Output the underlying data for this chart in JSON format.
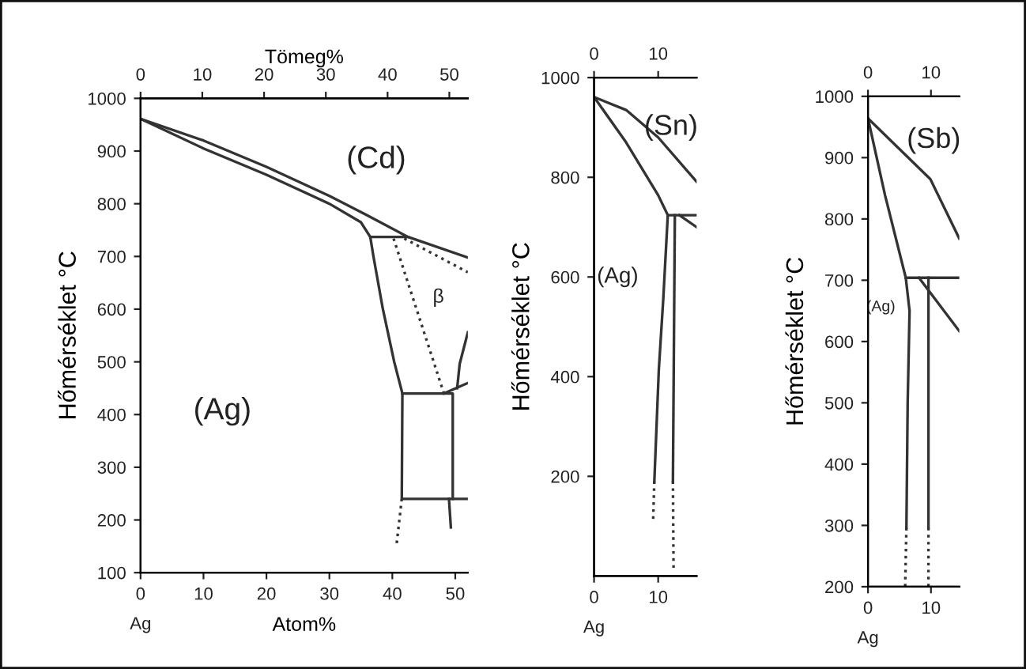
{
  "chart_data": [
    {
      "type": "line",
      "xlabel": "Atom%",
      "ylabel": "Hőmérséklet °C",
      "x2label": "Tömeg%",
      "xlim": [
        0,
        52
      ],
      "xticks": [
        0,
        10,
        20,
        30,
        40,
        50
      ],
      "x2lim": [
        0,
        53
      ],
      "x2ticks": [
        0,
        10,
        20,
        30,
        40,
        50
      ],
      "ylim": [
        100,
        1000
      ],
      "yticks": [
        100,
        200,
        300,
        400,
        500,
        600,
        700,
        800,
        900,
        1000
      ],
      "grid": false,
      "legend": false,
      "marker": "none",
      "series": [
        {
          "color": "#333333",
          "line_style": "solid",
          "x": [
            0,
            10,
            20,
            30,
            36,
            42.5,
            52
          ],
          "values": [
            961,
            920,
            870,
            815,
            778,
            737,
            698
          ]
        },
        {
          "color": "#333333",
          "line_style": "solid",
          "x": [
            0,
            10,
            20,
            30,
            35,
            36.5,
            37,
            38.5,
            40.3,
            41.6,
            41.5,
            52
          ],
          "values": [
            961,
            905,
            855,
            800,
            765,
            737,
            700,
            600,
            500,
            440,
            240,
            240
          ]
        },
        {
          "color": "#333333",
          "line_style": "solid",
          "x": [
            36.5,
            42.5
          ],
          "values": [
            737,
            737
          ]
        },
        {
          "color": "#333333",
          "line_style": "dotted",
          "x": [
            41.5,
            40.7
          ],
          "values": [
            240,
            156
          ]
        },
        {
          "color": "#333333",
          "line_style": "dotted",
          "x": [
            40.2,
            48.2
          ],
          "values": [
            734,
            440
          ]
        },
        {
          "color": "#333333",
          "line_style": "dotted",
          "x": [
            41.9,
            52
          ],
          "values": [
            734,
            670
          ]
        },
        {
          "color": "#333333",
          "line_style": "solid",
          "x": [
            41.6,
            49.6,
            49.6
          ],
          "values": [
            440,
            440,
            240
          ]
        },
        {
          "color": "#333333",
          "line_style": "solid",
          "x": [
            52,
            50.7,
            50.3
          ],
          "values": [
            556,
            496,
            450
          ]
        },
        {
          "color": "#333333",
          "line_style": "solid",
          "x": [
            48.2,
            52
          ],
          "values": [
            440,
            460
          ]
        },
        {
          "color": "#333333",
          "line_style": "solid",
          "x": [
            49,
            49.3
          ],
          "values": [
            240,
            186
          ]
        }
      ],
      "annotations": [
        "(Cd)",
        "β",
        "(Ag)",
        "Ag"
      ]
    },
    {
      "type": "line",
      "ylabel": "Hőmérséklet °C",
      "xlim": [
        0,
        16
      ],
      "xticks": [
        0,
        10
      ],
      "x2lim": [
        0,
        16
      ],
      "x2ticks": [
        0,
        10
      ],
      "ylim": [
        0,
        1000
      ],
      "yticks": [
        200,
        400,
        600,
        800,
        1000
      ],
      "grid": false,
      "legend": false,
      "marker": "none",
      "series": [
        {
          "color": "#333333",
          "line_style": "solid",
          "x": [
            0,
            5,
            10,
            16
          ],
          "values": [
            961,
            935,
            880,
            791
          ]
        },
        {
          "color": "#333333",
          "line_style": "solid",
          "x": [
            0,
            5,
            10,
            11.5,
            10.8,
            10.1,
            9.4
          ],
          "values": [
            961,
            870,
            764,
            724,
            557,
            414,
            190
          ]
        },
        {
          "color": "#333333",
          "line_style": "solid",
          "x": [
            11.5,
            16
          ],
          "values": [
            724,
            724
          ]
        },
        {
          "color": "#333333",
          "line_style": "solid",
          "x": [
            13.3,
            16
          ],
          "values": [
            724,
            700
          ]
        },
        {
          "color": "#333333",
          "line_style": "dotted",
          "x": [
            9.4,
            9.2
          ],
          "values": [
            190,
            106
          ]
        },
        {
          "color": "#333333",
          "line_style": "solid",
          "x": [
            12.6,
            12.3
          ],
          "values": [
            724,
            190
          ]
        },
        {
          "color": "#333333",
          "line_style": "dotted",
          "x": [
            12.3,
            12.4
          ],
          "values": [
            190,
            10
          ]
        }
      ],
      "annotations": [
        "(Sn)",
        "(Ag)",
        "Ag"
      ]
    },
    {
      "type": "line",
      "ylabel": "Hőmérséklet °C",
      "xlim": [
        0,
        14.5
      ],
      "xticks": [
        0,
        10
      ],
      "x2lim": [
        0,
        14.5
      ],
      "x2ticks": [
        0,
        10
      ],
      "ylim": [
        200,
        1000
      ],
      "yticks": [
        200,
        300,
        400,
        500,
        600,
        700,
        800,
        900,
        1000
      ],
      "grid": false,
      "legend": false,
      "marker": "none",
      "series": [
        {
          "color": "#333333",
          "line_style": "solid",
          "x": [
            0,
            9.9,
            14.5
          ],
          "values": [
            964,
            865,
            768
          ]
        },
        {
          "color": "#333333",
          "line_style": "solid",
          "x": [
            0,
            2.7,
            6,
            6.6,
            6.3,
            6.1
          ],
          "values": [
            964,
            839,
            704,
            650,
            500,
            296
          ]
        },
        {
          "color": "#333333",
          "line_style": "solid",
          "x": [
            6,
            14.5
          ],
          "values": [
            704,
            704
          ]
        },
        {
          "color": "#333333",
          "line_style": "solid",
          "x": [
            8.1,
            14.5
          ],
          "values": [
            704,
            617
          ]
        },
        {
          "color": "#333333",
          "line_style": "dotted",
          "x": [
            6.1,
            5.9
          ],
          "values": [
            296,
            200
          ]
        },
        {
          "color": "#333333",
          "line_style": "solid",
          "x": [
            9.6,
            9.6
          ],
          "values": [
            704,
            296
          ]
        },
        {
          "color": "#333333",
          "line_style": "dotted",
          "x": [
            9.6,
            9.6
          ],
          "values": [
            296,
            200
          ]
        }
      ],
      "annotations": [
        "(Sb)",
        "(Ag)",
        "Ag"
      ]
    }
  ]
}
